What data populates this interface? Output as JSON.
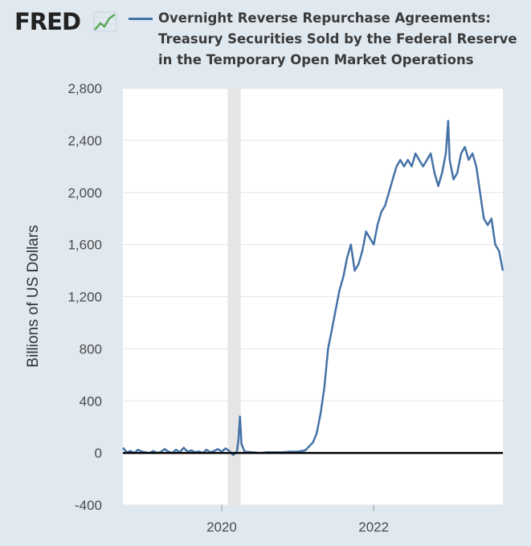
{
  "header": {
    "logo_text": "FRED",
    "logo_icon": "line-graph-icon",
    "title_lines": [
      "Overnight Reverse Repurchase Agreements:",
      "Treasury Securities Sold by the Federal Reserve",
      "in the Temporary Open Market Operations"
    ]
  },
  "colors": {
    "background": "#e1e9f0",
    "plot_area": "#ffffff",
    "series": "#4572a7",
    "zero_line": "#000000",
    "recession_band": "#e5e5e5",
    "logo_green": "#5aa85a"
  },
  "chart_data": {
    "type": "line",
    "title": "Overnight Reverse Repurchase Agreements: Treasury Securities Sold by the Federal Reserve in the Temporary Open Market Operations",
    "xlabel": "",
    "ylabel": "Billions of US Dollars",
    "xlim": [
      2018.7,
      2023.7
    ],
    "ylim": [
      -400,
      2800
    ],
    "yticks": [
      -400,
      0,
      400,
      800,
      1200,
      1600,
      2000,
      2400,
      2800
    ],
    "ytick_labels": [
      "-400",
      "0",
      "400",
      "800",
      "1,200",
      "1,600",
      "2,000",
      "2,400",
      "2,800"
    ],
    "xticks": [
      2020,
      2022
    ],
    "xtick_labels": [
      "2020",
      "2022"
    ],
    "grid": "horizontal",
    "recession_shading": [
      [
        2020.08,
        2020.25
      ]
    ],
    "zero_line": true,
    "series": [
      {
        "x": [
          2018.7,
          2018.75,
          2018.8,
          2018.85,
          2018.9,
          2018.95,
          2019.0,
          2019.05,
          2019.1,
          2019.15,
          2019.2,
          2019.25,
          2019.3,
          2019.35,
          2019.4,
          2019.45,
          2019.5,
          2019.55,
          2019.6,
          2019.65,
          2019.7,
          2019.75,
          2019.8,
          2019.85,
          2019.9,
          2019.95,
          2020.0,
          2020.05,
          2020.1,
          2020.15,
          2020.2,
          2020.22,
          2020.24,
          2020.26,
          2020.3,
          2020.4,
          2020.5,
          2020.6,
          2020.7,
          2020.8,
          2020.9,
          2021.0,
          2021.1,
          2021.2,
          2021.25,
          2021.3,
          2021.35,
          2021.4,
          2021.45,
          2021.5,
          2021.55,
          2021.6,
          2021.65,
          2021.7,
          2021.75,
          2021.8,
          2021.85,
          2021.9,
          2021.95,
          2022.0,
          2022.05,
          2022.1,
          2022.15,
          2022.2,
          2022.25,
          2022.3,
          2022.35,
          2022.4,
          2022.45,
          2022.5,
          2022.55,
          2022.6,
          2022.65,
          2022.7,
          2022.75,
          2022.8,
          2022.85,
          2022.9,
          2022.95,
          2022.98,
          2023.0,
          2023.05,
          2023.1,
          2023.15,
          2023.2,
          2023.25,
          2023.3,
          2023.35,
          2023.4,
          2023.45,
          2023.5,
          2023.55,
          2023.6,
          2023.65,
          2023.7
        ],
        "values": [
          40,
          5,
          15,
          0,
          25,
          10,
          5,
          0,
          15,
          0,
          8,
          30,
          10,
          0,
          25,
          5,
          40,
          10,
          20,
          5,
          12,
          0,
          25,
          5,
          15,
          30,
          10,
          35,
          15,
          -15,
          10,
          100,
          280,
          70,
          10,
          5,
          0,
          5,
          5,
          5,
          10,
          10,
          20,
          80,
          150,
          300,
          500,
          800,
          950,
          1100,
          1250,
          1350,
          1500,
          1600,
          1400,
          1450,
          1550,
          1700,
          1650,
          1600,
          1750,
          1850,
          1900,
          2000,
          2100,
          2200,
          2250,
          2200,
          2250,
          2200,
          2300,
          2250,
          2200,
          2250,
          2300,
          2150,
          2050,
          2150,
          2300,
          2550,
          2250,
          2100,
          2150,
          2300,
          2350,
          2250,
          2300,
          2200,
          2000,
          1800,
          1750,
          1800,
          1600,
          1550,
          1400
        ]
      }
    ]
  }
}
